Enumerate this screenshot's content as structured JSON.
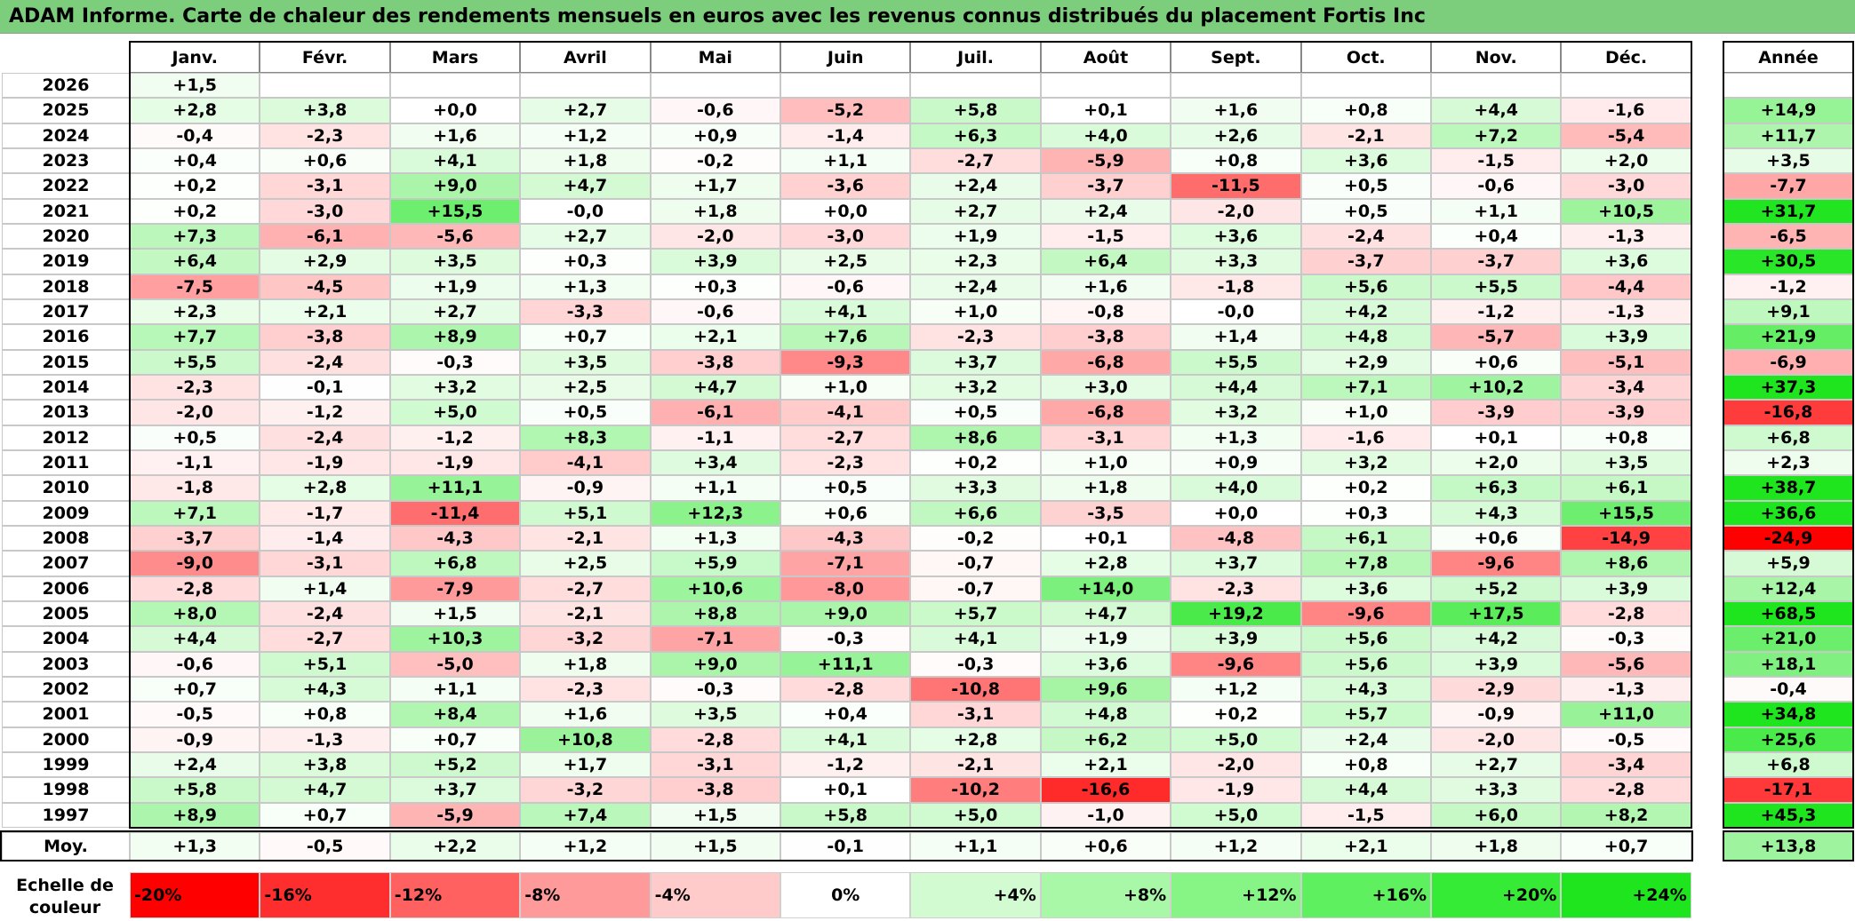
{
  "title": "ADAM Informe. Carte de chaleur des rendements mensuels en euros avec les revenus connus distribués du placement Fortis Inc",
  "chart_data": {
    "type": "heatmap",
    "title": "ADAM Informe. Carte de chaleur des rendements mensuels en euros avec les revenus connus distribués du placement Fortis Inc",
    "months": [
      "Janv.",
      "Févr.",
      "Mars",
      "Avril",
      "Mai",
      "Juin",
      "Juil.",
      "Août",
      "Sept.",
      "Oct.",
      "Nov.",
      "Déc."
    ],
    "annual_header": "Année",
    "rows": [
      {
        "year": "2026",
        "months": [
          "+1,5",
          "",
          "",
          "",
          "",
          "",
          "",
          "",
          "",
          "",
          "",
          ""
        ],
        "annual": ""
      },
      {
        "year": "2025",
        "months": [
          "+2,8",
          "+3,8",
          "+0,0",
          "+2,7",
          "-0,6",
          "-5,2",
          "+5,8",
          "+0,1",
          "+1,6",
          "+0,8",
          "+4,4",
          "-1,6"
        ],
        "annual": "+14,9"
      },
      {
        "year": "2024",
        "months": [
          "-0,4",
          "-2,3",
          "+1,6",
          "+1,2",
          "+0,9",
          "-1,4",
          "+6,3",
          "+4,0",
          "+2,6",
          "-2,1",
          "+7,2",
          "-5,4"
        ],
        "annual": "+11,7"
      },
      {
        "year": "2023",
        "months": [
          "+0,4",
          "+0,6",
          "+4,1",
          "+1,8",
          "-0,2",
          "+1,1",
          "-2,7",
          "-5,9",
          "+0,8",
          "+3,6",
          "-1,5",
          "+2,0"
        ],
        "annual": "+3,5"
      },
      {
        "year": "2022",
        "months": [
          "+0,2",
          "-3,1",
          "+9,0",
          "+4,7",
          "+1,7",
          "-3,6",
          "+2,4",
          "-3,7",
          "-11,5",
          "+0,5",
          "-0,6",
          "-3,0"
        ],
        "annual": "-7,7"
      },
      {
        "year": "2021",
        "months": [
          "+0,2",
          "-3,0",
          "+15,5",
          "-0,0",
          "+1,8",
          "+0,0",
          "+2,7",
          "+2,4",
          "-2,0",
          "+0,5",
          "+1,1",
          "+10,5"
        ],
        "annual": "+31,7"
      },
      {
        "year": "2020",
        "months": [
          "+7,3",
          "-6,1",
          "-5,6",
          "+2,7",
          "-2,0",
          "-3,0",
          "+1,9",
          "-1,5",
          "+3,6",
          "-2,4",
          "+0,4",
          "-1,3"
        ],
        "annual": "-6,5"
      },
      {
        "year": "2019",
        "months": [
          "+6,4",
          "+2,9",
          "+3,5",
          "+0,3",
          "+3,9",
          "+2,5",
          "+2,3",
          "+6,4",
          "+3,3",
          "-3,7",
          "-3,7",
          "+3,6"
        ],
        "annual": "+30,5"
      },
      {
        "year": "2018",
        "months": [
          "-7,5",
          "-4,5",
          "+1,9",
          "+1,3",
          "+0,3",
          "-0,6",
          "+2,4",
          "+1,6",
          "-1,8",
          "+5,6",
          "+5,5",
          "-4,4"
        ],
        "annual": "-1,2"
      },
      {
        "year": "2017",
        "months": [
          "+2,3",
          "+2,1",
          "+2,7",
          "-3,3",
          "-0,6",
          "+4,1",
          "+1,0",
          "-0,8",
          "-0,0",
          "+4,2",
          "-1,2",
          "-1,3"
        ],
        "annual": "+9,1"
      },
      {
        "year": "2016",
        "months": [
          "+7,7",
          "-3,8",
          "+8,9",
          "+0,7",
          "+2,1",
          "+7,6",
          "-2,3",
          "-3,8",
          "+1,4",
          "+4,8",
          "-5,7",
          "+3,9"
        ],
        "annual": "+21,9"
      },
      {
        "year": "2015",
        "months": [
          "+5,5",
          "-2,4",
          "-0,3",
          "+3,5",
          "-3,8",
          "-9,3",
          "+3,7",
          "-6,8",
          "+5,5",
          "+2,9",
          "+0,6",
          "-5,1"
        ],
        "annual": "-6,9"
      },
      {
        "year": "2014",
        "months": [
          "-2,3",
          "-0,1",
          "+3,2",
          "+2,5",
          "+4,7",
          "+1,0",
          "+3,2",
          "+3,0",
          "+4,4",
          "+7,1",
          "+10,2",
          "-3,4"
        ],
        "annual": "+37,3"
      },
      {
        "year": "2013",
        "months": [
          "-2,0",
          "-1,2",
          "+5,0",
          "+0,5",
          "-6,1",
          "-4,1",
          "+0,5",
          "-6,8",
          "+3,2",
          "+1,0",
          "-3,9",
          "-3,9"
        ],
        "annual": "-16,8"
      },
      {
        "year": "2012",
        "months": [
          "+0,5",
          "-2,4",
          "-1,2",
          "+8,3",
          "-1,1",
          "-2,7",
          "+8,6",
          "-3,1",
          "+1,3",
          "-1,6",
          "+0,1",
          "+0,8"
        ],
        "annual": "+6,8"
      },
      {
        "year": "2011",
        "months": [
          "-1,1",
          "-1,9",
          "-1,9",
          "-4,1",
          "+3,4",
          "-2,3",
          "+0,2",
          "+1,0",
          "+0,9",
          "+3,2",
          "+2,0",
          "+3,5"
        ],
        "annual": "+2,3"
      },
      {
        "year": "2010",
        "months": [
          "-1,8",
          "+2,8",
          "+11,1",
          "-0,9",
          "+1,1",
          "+0,5",
          "+3,3",
          "+1,8",
          "+4,0",
          "+0,2",
          "+6,3",
          "+6,1"
        ],
        "annual": "+38,7"
      },
      {
        "year": "2009",
        "months": [
          "+7,1",
          "-1,7",
          "-11,4",
          "+5,1",
          "+12,3",
          "+0,6",
          "+6,6",
          "-3,5",
          "+0,0",
          "+0,3",
          "+4,3",
          "+15,5"
        ],
        "annual": "+36,6"
      },
      {
        "year": "2008",
        "months": [
          "-3,7",
          "-1,4",
          "-4,3",
          "-2,1",
          "+1,3",
          "-4,3",
          "-0,2",
          "+0,1",
          "-4,8",
          "+6,1",
          "+0,6",
          "-14,9"
        ],
        "annual": "-24,9"
      },
      {
        "year": "2007",
        "months": [
          "-9,0",
          "-3,1",
          "+6,8",
          "+2,5",
          "+5,9",
          "-7,1",
          "-0,7",
          "+2,8",
          "+3,7",
          "+7,8",
          "-9,6",
          "+8,6"
        ],
        "annual": "+5,9"
      },
      {
        "year": "2006",
        "months": [
          "-2,8",
          "+1,4",
          "-7,9",
          "-2,7",
          "+10,6",
          "-8,0",
          "-0,7",
          "+14,0",
          "-2,3",
          "+3,6",
          "+5,2",
          "+3,9"
        ],
        "annual": "+12,4"
      },
      {
        "year": "2005",
        "months": [
          "+8,0",
          "-2,4",
          "+1,5",
          "-2,1",
          "+8,8",
          "+9,0",
          "+5,7",
          "+4,7",
          "+19,2",
          "-9,6",
          "+17,5",
          "-2,8"
        ],
        "annual": "+68,5"
      },
      {
        "year": "2004",
        "months": [
          "+4,4",
          "-2,7",
          "+10,3",
          "-3,2",
          "-7,1",
          "-0,3",
          "+4,1",
          "+1,9",
          "+3,9",
          "+5,6",
          "+4,2",
          "-0,3"
        ],
        "annual": "+21,0"
      },
      {
        "year": "2003",
        "months": [
          "-0,6",
          "+5,1",
          "-5,0",
          "+1,8",
          "+9,0",
          "+11,1",
          "-0,3",
          "+3,6",
          "-9,6",
          "+5,6",
          "+3,9",
          "-5,6"
        ],
        "annual": "+18,1"
      },
      {
        "year": "2002",
        "months": [
          "+0,7",
          "+4,3",
          "+1,1",
          "-2,3",
          "-0,3",
          "-2,8",
          "-10,8",
          "+9,6",
          "+1,2",
          "+4,3",
          "-2,9",
          "-1,3"
        ],
        "annual": "-0,4"
      },
      {
        "year": "2001",
        "months": [
          "-0,5",
          "+0,8",
          "+8,4",
          "+1,6",
          "+3,5",
          "+0,4",
          "-3,1",
          "+4,8",
          "+0,2",
          "+5,7",
          "-0,9",
          "+11,0"
        ],
        "annual": "+34,8"
      },
      {
        "year": "2000",
        "months": [
          "-0,9",
          "-1,3",
          "+0,7",
          "+10,8",
          "-2,8",
          "+4,1",
          "+2,8",
          "+6,2",
          "+5,0",
          "+2,4",
          "-2,0",
          "-0,5"
        ],
        "annual": "+25,6"
      },
      {
        "year": "1999",
        "months": [
          "+2,4",
          "+3,8",
          "+5,2",
          "+1,7",
          "-3,1",
          "-1,2",
          "-2,1",
          "+2,1",
          "-2,0",
          "+0,8",
          "+2,7",
          "-3,4"
        ],
        "annual": "+6,8"
      },
      {
        "year": "1998",
        "months": [
          "+5,8",
          "+4,7",
          "+3,7",
          "-3,2",
          "-3,8",
          "+0,1",
          "-10,2",
          "-16,6",
          "-1,9",
          "+4,4",
          "+3,3",
          "-2,8"
        ],
        "annual": "-17,1"
      },
      {
        "year": "1997",
        "months": [
          "+8,9",
          "+0,7",
          "-5,9",
          "+7,4",
          "+1,5",
          "+5,8",
          "+5,0",
          "-1,0",
          "+5,0",
          "-1,5",
          "+6,0",
          "+8,2"
        ],
        "annual": "+45,3"
      }
    ],
    "average": {
      "label": "Moy.",
      "months": [
        "+1,3",
        "-0,5",
        "+2,2",
        "+1,2",
        "+1,5",
        "-0,1",
        "+1,1",
        "+0,6",
        "+1,2",
        "+2,1",
        "+1,8",
        "+0,7"
      ],
      "annual": "+13,8"
    },
    "color_scale": {
      "label_line1": "Echelle de",
      "label_line2": "couleur",
      "stops": [
        {
          "label": "-20%",
          "color": "#ff0000"
        },
        {
          "label": "-16%",
          "color": "#ff2e2e"
        },
        {
          "label": "-12%",
          "color": "#ff6060"
        },
        {
          "label": "-8%",
          "color": "#ff9a9a"
        },
        {
          "label": "-4%",
          "color": "#ffcaca"
        },
        {
          "label": "0%",
          "color": "#ffffff"
        },
        {
          "label": "+4%",
          "color": "#d2fbd2"
        },
        {
          "label": "+8%",
          "color": "#a8f8a8"
        },
        {
          "label": "+12%",
          "color": "#86f586"
        },
        {
          "label": "+16%",
          "color": "#5ef05e"
        },
        {
          "label": "+20%",
          "color": "#36eb36"
        },
        {
          "label": "+24%",
          "color": "#1ee51e"
        }
      ]
    }
  }
}
